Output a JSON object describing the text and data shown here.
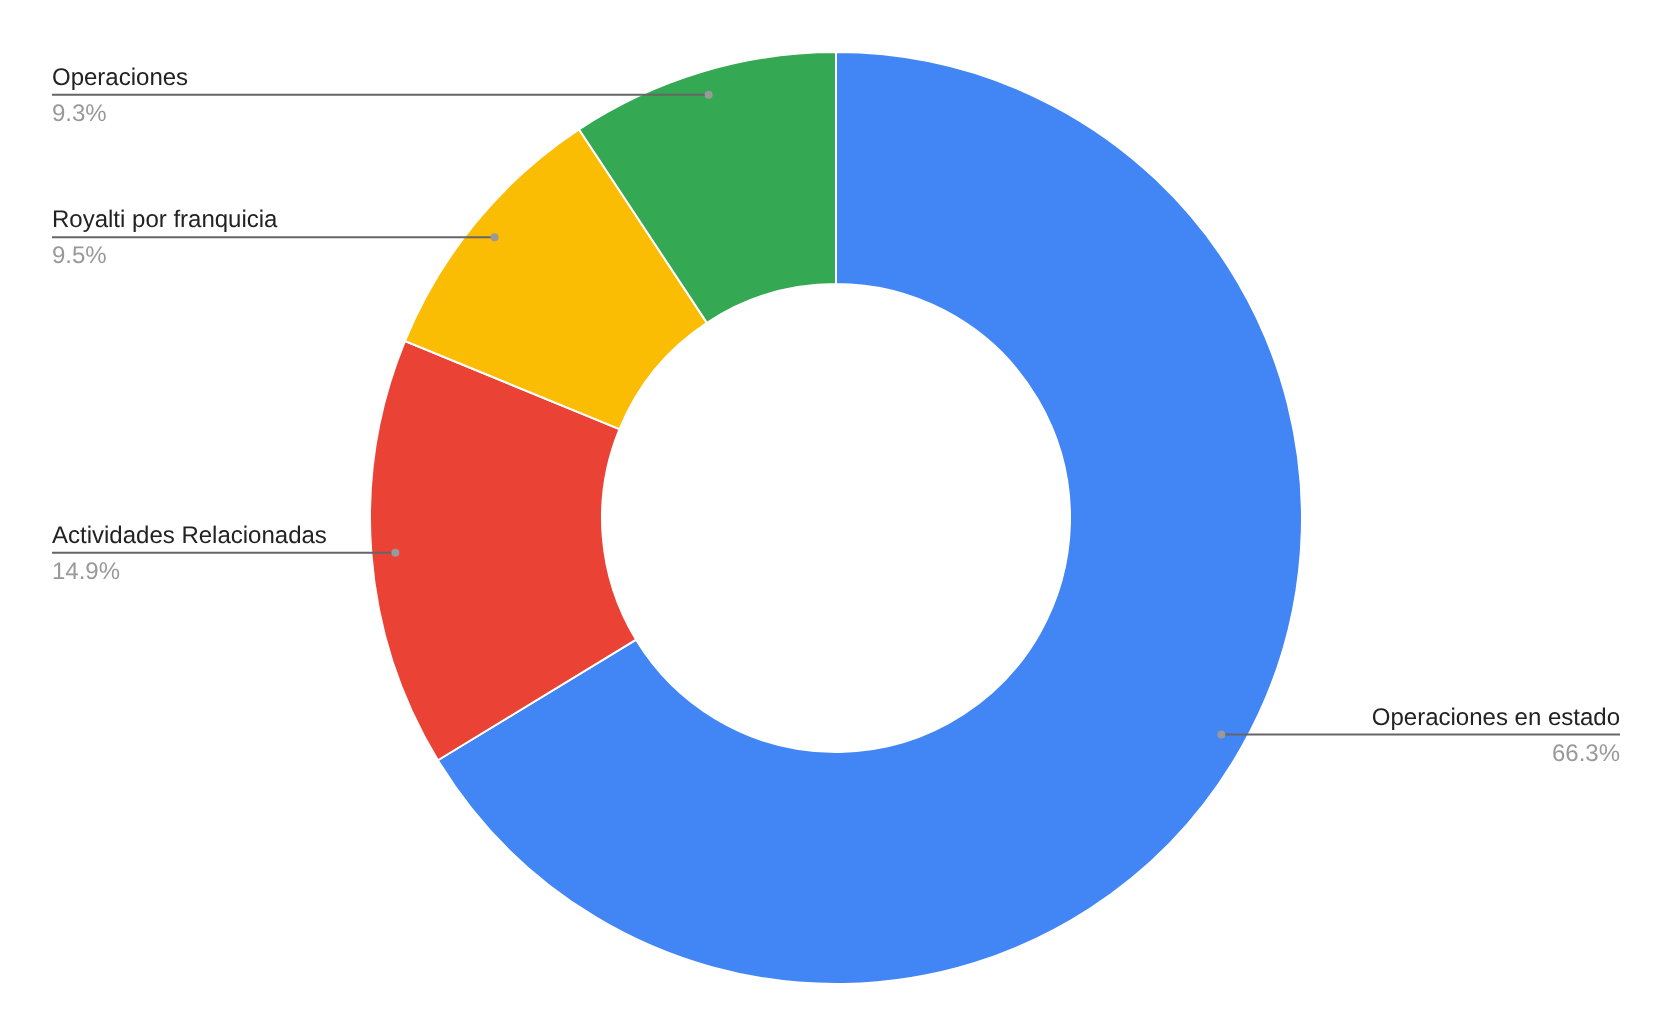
{
  "chart_data": {
    "type": "donut",
    "categories": [
      "Operaciones en estado",
      "Actividades Relacionadas",
      "Royalti por franquicia",
      "Operaciones"
    ],
    "values": [
      66.3,
      14.9,
      9.5,
      9.3
    ],
    "colors": [
      "#4285f4",
      "#ea4335",
      "#fbbc04",
      "#34a853"
    ],
    "value_labels": [
      "66.3%",
      "14.9%",
      "9.5%",
      "9.3%"
    ]
  }
}
